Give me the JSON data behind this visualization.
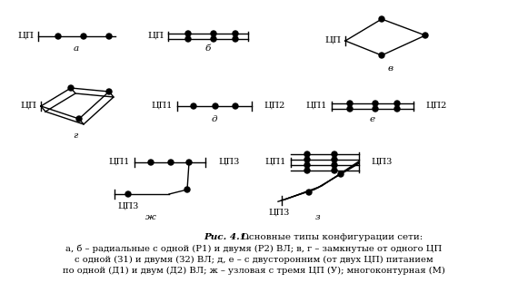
{
  "bg_color": "#ffffff",
  "caption_bold": "Рис. 4.1.",
  "caption_normal": " Основные типы конфигурации сети:",
  "caption_line2": "а, б – радиальные с одной (Р1) и двумя (Р2) ВЛ; в, г – замкнутые от одного ЦП",
  "caption_line3": "с одной (З1) и двумя (З2) ВЛ; д, е – с двусторонним (от двух ЦП) питанием",
  "caption_line4": "по одной (Д1) и двум (Д2) ВЛ; ж – узловая с тремя ЦП (У); многоконтурная (М)"
}
